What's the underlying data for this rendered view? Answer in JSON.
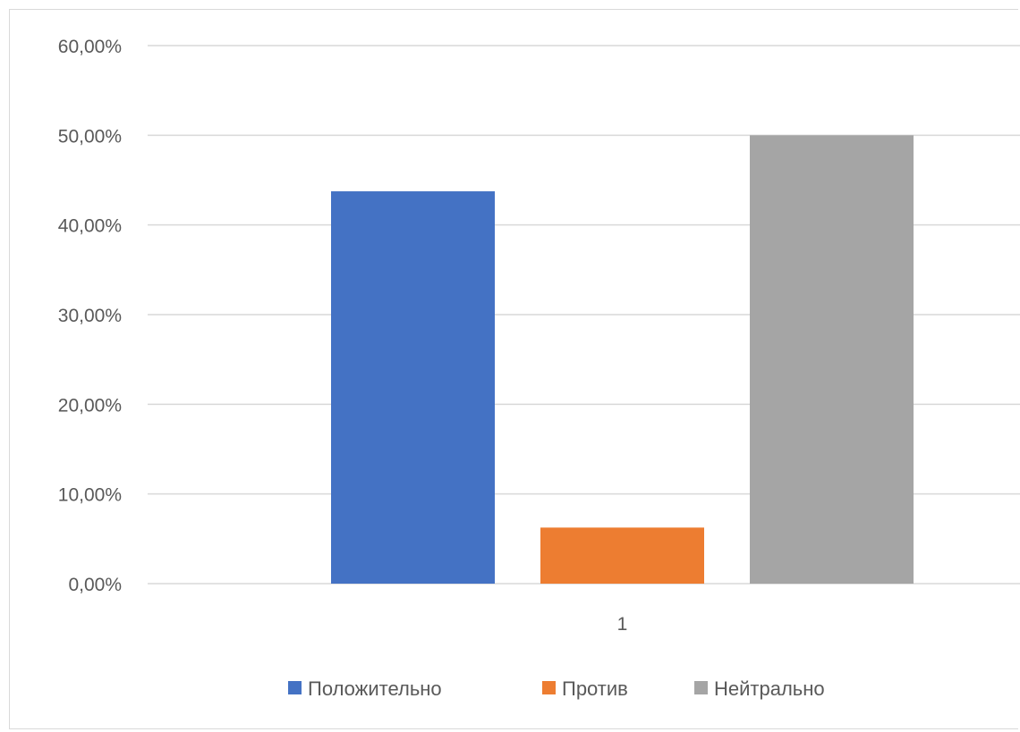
{
  "chart_data": {
    "type": "bar",
    "categories": [
      "1"
    ],
    "series": [
      {
        "name": "Положительно",
        "values": [
          0.4375
        ],
        "color": "#4472c4"
      },
      {
        "name": "Против",
        "values": [
          0.0625
        ],
        "color": "#ed7d31"
      },
      {
        "name": "Нейтрально",
        "values": [
          0.5
        ],
        "color": "#a5a5a5"
      }
    ],
    "title": "",
    "xlabel": "",
    "ylabel": "",
    "ylim": [
      0,
      0.6
    ],
    "y_ticks": [
      "0,00%",
      "10,00%",
      "20,00%",
      "30,00%",
      "40,00%",
      "50,00%",
      "60,00%"
    ],
    "grid": true,
    "legend_position": "bottom",
    "gridline_color": "#d9d9d9",
    "axis_label_color": "#595959"
  }
}
